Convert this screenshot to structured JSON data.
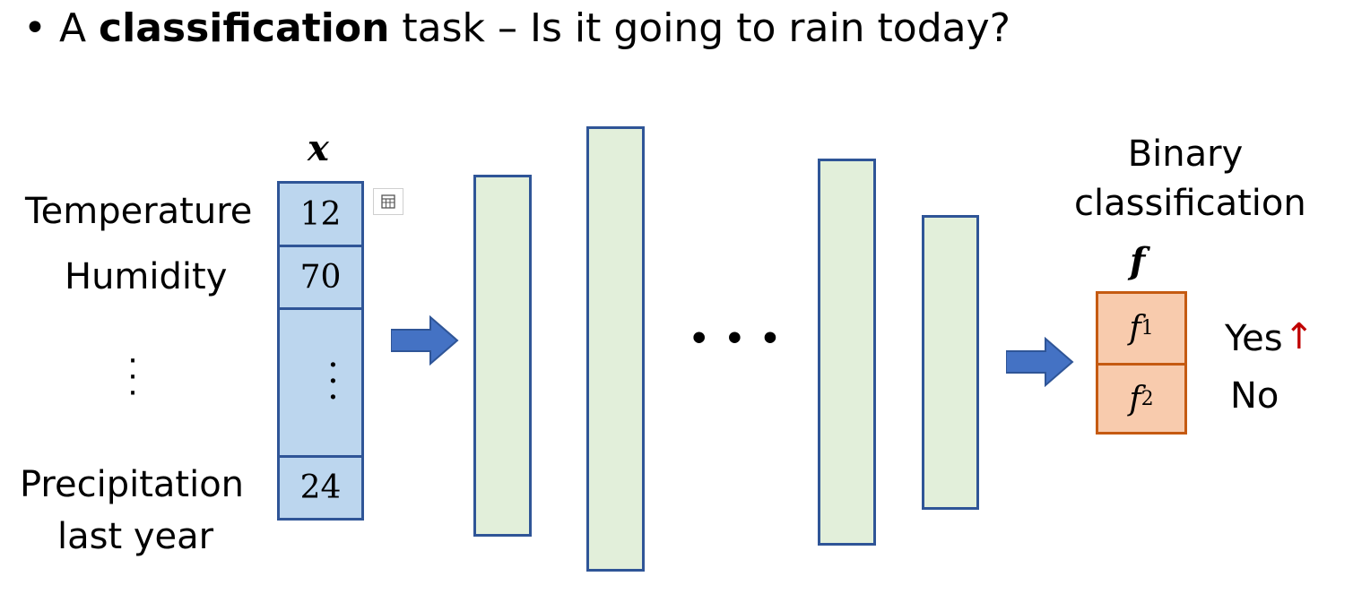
{
  "title": {
    "bullet": "•",
    "prefix": "A ",
    "bold": "classification",
    "suffix": " task – Is it going to rain today?"
  },
  "input": {
    "vector_label": "x",
    "features": [
      "Temperature",
      "Humidity",
      "Precipitation",
      "last year"
    ],
    "values": [
      "12",
      "70",
      "24"
    ],
    "ellipsis": "⋮"
  },
  "hidden": {
    "ellipsis": "• • •"
  },
  "output": {
    "heading_line1": "Binary",
    "heading_line2": "classification",
    "vector_label": "f",
    "cells": [
      {
        "var": "f",
        "sub": "1"
      },
      {
        "var": "f",
        "sub": "2"
      }
    ],
    "answers": [
      "Yes",
      "No"
    ],
    "indicator": "↑",
    "indicator_color": "#c00000"
  },
  "colors": {
    "input_fill": "#bcd6ee",
    "border_blue": "#2f5597",
    "layer_fill": "#e2efda",
    "output_fill": "#f8cbad",
    "output_border": "#c55a11",
    "arrow": "#4472c4"
  }
}
